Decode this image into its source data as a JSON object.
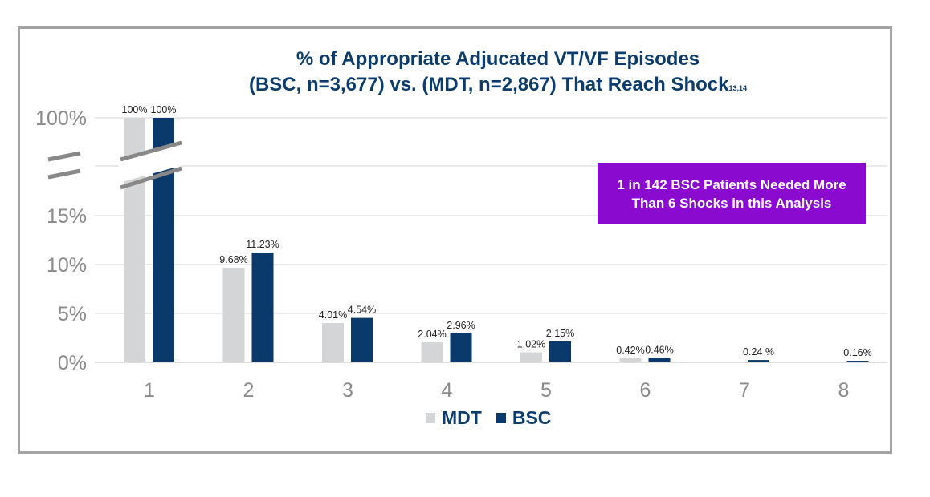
{
  "chart_data": {
    "type": "bar",
    "title_line1": "% of Appropriate Adjucated VT/VF Episodes",
    "title_line2": "(BSC, n=3,677) vs. (MDT, n=2,867) That Reach Shock",
    "title_superscript": "13,14",
    "xlabel": "",
    "ylabel": "",
    "ylim": [
      0,
      15
    ],
    "y_axis_break": true,
    "y_ticks": [
      "0%",
      "5%",
      "10%",
      "15%",
      "100%"
    ],
    "grid": true,
    "categories": [
      "1",
      "2",
      "3",
      "4",
      "5",
      "6",
      "7",
      "8"
    ],
    "series": [
      {
        "name": "MDT",
        "color": "#d4d5d7",
        "values": [
          100,
          9.68,
          4.01,
          2.04,
          1.02,
          0.42,
          null,
          null
        ],
        "labels": [
          "100%",
          "9.68%",
          "4.01%",
          "2.04%",
          "1.02%",
          "0.42%",
          "",
          ""
        ]
      },
      {
        "name": "BSC",
        "color": "#0a3a6b",
        "values": [
          100,
          11.23,
          4.54,
          2.96,
          2.15,
          0.46,
          0.24,
          0.16
        ],
        "labels": [
          "100%",
          "11.23%",
          "4.54%",
          "2.96%",
          "2.15%",
          "0.46%",
          "0.24 %",
          "0.16%"
        ]
      }
    ],
    "legend_placement": "bottom",
    "annotation": {
      "line1": "1 in 142 BSC Patients Needed More",
      "line2": "Than 6 Shocks in this Analysis",
      "color": "#8a0ad0"
    }
  }
}
